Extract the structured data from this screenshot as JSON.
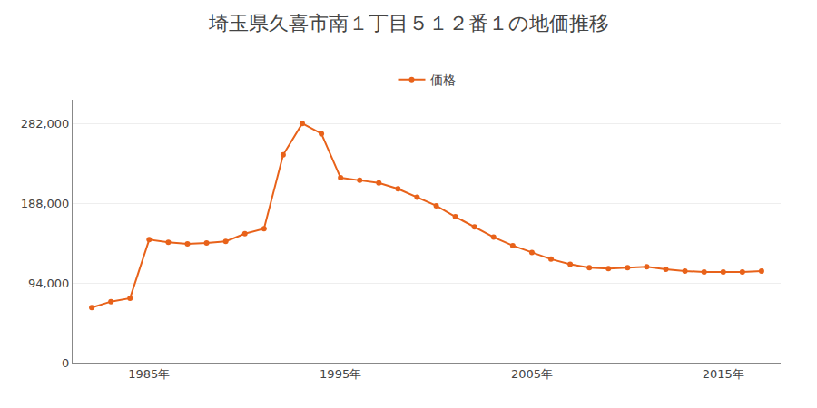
{
  "chart_data": {
    "type": "line",
    "title": "埼玉県久喜市南１丁目５１２番１の地価推移",
    "x": [
      1982,
      1983,
      1984,
      1985,
      1986,
      1987,
      1988,
      1989,
      1990,
      1991,
      1992,
      1993,
      1994,
      1995,
      1996,
      1997,
      1998,
      1999,
      2000,
      2001,
      2002,
      2003,
      2004,
      2005,
      2006,
      2007,
      2008,
      2009,
      2010,
      2011,
      2012,
      2013,
      2014,
      2015,
      2016,
      2017
    ],
    "series": [
      {
        "name": "価格",
        "color": "#e8621a",
        "values": [
          65000,
          72000,
          76000,
          145000,
          142000,
          140000,
          141000,
          143000,
          152000,
          158000,
          245000,
          282000,
          270000,
          218000,
          215000,
          212000,
          205000,
          195000,
          185000,
          172000,
          160000,
          148000,
          138000,
          130000,
          122000,
          116000,
          112000,
          111000,
          112000,
          113000,
          110000,
          108000,
          107000,
          107000,
          107000,
          108000
        ]
      }
    ],
    "xlim": [
      1981,
      2018
    ],
    "xticks": [
      {
        "value": 1985,
        "label": "1985年"
      },
      {
        "value": 1995,
        "label": "1995年"
      },
      {
        "value": 2005,
        "label": "2005年"
      },
      {
        "value": 2015,
        "label": "2015年"
      }
    ],
    "ylim": [
      0,
      310000
    ],
    "yticks": [
      0,
      {
        "value": 94000,
        "label": "94,000"
      },
      {
        "value": 188000,
        "label": "188,000"
      },
      {
        "value": 282000,
        "label": "282,000"
      }
    ],
    "grid": "y",
    "legend": "top",
    "marker": "circle"
  }
}
